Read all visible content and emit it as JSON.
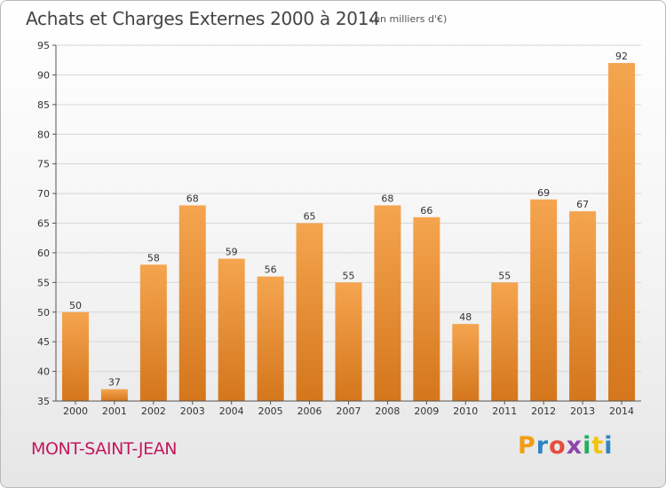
{
  "header": {
    "title": "Achats et Charges Externes 2000 à 2014",
    "subtitle": "(en milliers d'€)"
  },
  "footer": {
    "commune": "MONT-SAINT-JEAN",
    "logo_letters": [
      "P",
      "r",
      "o",
      "x",
      "i",
      "t",
      "i"
    ],
    "logo_colors": [
      "#f39c12",
      "#2e86c1",
      "#e74c3c",
      "#8e44ad",
      "#27ae60",
      "#f1c40f",
      "#2e86c1"
    ]
  },
  "colors": {
    "bar_light": "#f5a54f",
    "bar_dark": "#d4761c",
    "grid": "#d6d6d6",
    "axis": "#555555"
  },
  "chart_data": {
    "type": "bar",
    "title": "Achats et Charges Externes 2000 à 2014",
    "subtitle": "(en milliers d'€)",
    "xlabel": "",
    "ylabel": "",
    "categories": [
      "2000",
      "2001",
      "2002",
      "2003",
      "2004",
      "2005",
      "2006",
      "2007",
      "2008",
      "2009",
      "2010",
      "2011",
      "2012",
      "2013",
      "2014"
    ],
    "values": [
      50,
      37,
      58,
      68,
      59,
      56,
      65,
      55,
      68,
      66,
      48,
      55,
      69,
      67,
      92
    ],
    "ylim": [
      35,
      95
    ],
    "yticks": [
      35,
      40,
      45,
      50,
      55,
      60,
      65,
      70,
      75,
      80,
      85,
      90,
      95
    ],
    "grid": true
  }
}
